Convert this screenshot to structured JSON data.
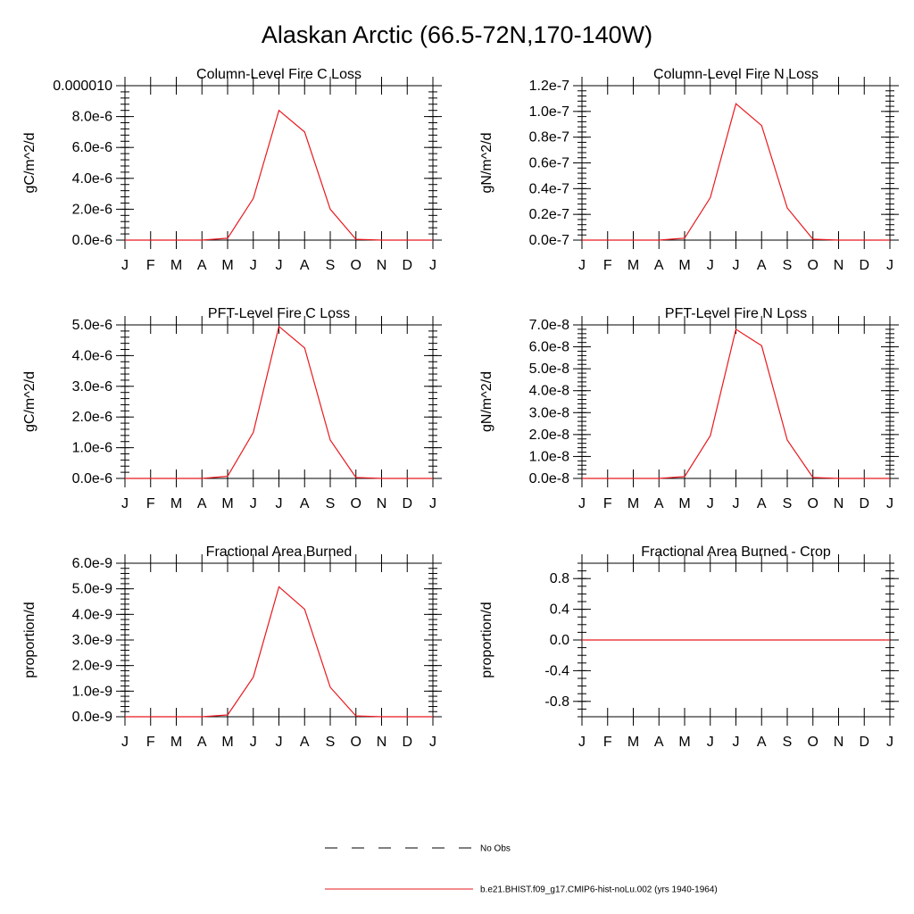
{
  "title": "Alaskan Arctic (66.5-72N,170-140W)",
  "colors": {
    "model": "#e8191f",
    "obs": "#000000",
    "axis": "#000000"
  },
  "legend": {
    "obs_label": "No Obs",
    "model_label": "b.e21.BHIST.f09_g17.CMIP6-hist-noLu.002 (yrs 1940-1964)"
  },
  "chart_data": [
    {
      "type": "line",
      "title": "Column-Level Fire C Loss",
      "ylabel": "gC/m^2/d",
      "categories": [
        "J",
        "F",
        "M",
        "A",
        "M",
        "J",
        "J",
        "A",
        "S",
        "O",
        "N",
        "D",
        "J"
      ],
      "ylim": [
        0,
        1e-05
      ],
      "yticks": [
        "0.0e-6",
        "2.0e-6",
        "4.0e-6",
        "6.0e-6",
        "8.0e-6",
        "0.000010"
      ],
      "series": [
        {
          "values": [
            0,
            0,
            0,
            0,
            1.2e-07,
            2.7e-06,
            8.4e-06,
            7e-06,
            2e-06,
            5e-08,
            0,
            0,
            0
          ]
        }
      ]
    },
    {
      "type": "line",
      "title": "Column-Level Fire N Loss",
      "ylabel": "gN/m^2/d",
      "categories": [
        "J",
        "F",
        "M",
        "A",
        "M",
        "J",
        "J",
        "A",
        "S",
        "O",
        "N",
        "D",
        "J"
      ],
      "ylim": [
        0,
        1.2e-07
      ],
      "yticks": [
        "0.0e-7",
        "0.2e-7",
        "0.4e-7",
        "0.6e-7",
        "0.8e-7",
        "1.0e-7",
        "1.2e-7"
      ],
      "series": [
        {
          "values": [
            0,
            0,
            0,
            0,
            1.5e-09,
            3.3e-08,
            1.06e-07,
            8.9e-08,
            2.5e-08,
            7e-10,
            0,
            0,
            0
          ]
        }
      ]
    },
    {
      "type": "line",
      "title": "PFT-Level Fire C Loss",
      "ylabel": "gC/m^2/d",
      "categories": [
        "J",
        "F",
        "M",
        "A",
        "M",
        "J",
        "J",
        "A",
        "S",
        "O",
        "N",
        "D",
        "J"
      ],
      "ylim": [
        0,
        5e-06
      ],
      "yticks": [
        "0.0e-6",
        "1.0e-6",
        "2.0e-6",
        "3.0e-6",
        "4.0e-6",
        "5.0e-6"
      ],
      "series": [
        {
          "values": [
            0,
            0,
            0,
            0,
            7e-08,
            1.5e-06,
            4.95e-06,
            4.25e-06,
            1.25e-06,
            3e-08,
            0,
            0,
            0
          ]
        }
      ]
    },
    {
      "type": "line",
      "title": "PFT-Level Fire N Loss",
      "ylabel": "gN/m^2/d",
      "categories": [
        "J",
        "F",
        "M",
        "A",
        "M",
        "J",
        "J",
        "A",
        "S",
        "O",
        "N",
        "D",
        "J"
      ],
      "ylim": [
        0,
        7e-08
      ],
      "yticks": [
        "0.0e-8",
        "1.0e-8",
        "2.0e-8",
        "3.0e-8",
        "4.0e-8",
        "5.0e-8",
        "6.0e-8",
        "7.0e-8"
      ],
      "series": [
        {
          "values": [
            0,
            0,
            0,
            0,
            8e-10,
            1.95e-08,
            6.8e-08,
            6.05e-08,
            1.75e-08,
            4e-10,
            0,
            0,
            0
          ]
        }
      ]
    },
    {
      "type": "line",
      "title": "Fractional Area Burned",
      "ylabel": "proportion/d",
      "categories": [
        "J",
        "F",
        "M",
        "A",
        "M",
        "J",
        "J",
        "A",
        "S",
        "O",
        "N",
        "D",
        "J"
      ],
      "ylim": [
        0,
        6e-09
      ],
      "yticks": [
        "0.0e-9",
        "1.0e-9",
        "2.0e-9",
        "3.0e-9",
        "4.0e-9",
        "5.0e-9",
        "6.0e-9"
      ],
      "series": [
        {
          "values": [
            0,
            0,
            0,
            0,
            7e-11,
            1.55e-09,
            5.08e-09,
            4.2e-09,
            1.15e-09,
            3e-11,
            0,
            0,
            0
          ]
        }
      ]
    },
    {
      "type": "line",
      "title": "Fractional Area Burned - Crop",
      "ylabel": "proportion/d",
      "categories": [
        "J",
        "F",
        "M",
        "A",
        "M",
        "J",
        "J",
        "A",
        "S",
        "O",
        "N",
        "D",
        "J"
      ],
      "ylim": [
        -1,
        1
      ],
      "yticks": [
        "-0.8",
        "-0.4",
        "0.0",
        "0.4",
        "0.8"
      ],
      "ytick_values": [
        -0.8,
        -0.4,
        0,
        0.4,
        0.8
      ],
      "series": [
        {
          "values": [
            0,
            0,
            0,
            0,
            0,
            0,
            0,
            0,
            0,
            0,
            0,
            0,
            0
          ]
        }
      ]
    }
  ]
}
